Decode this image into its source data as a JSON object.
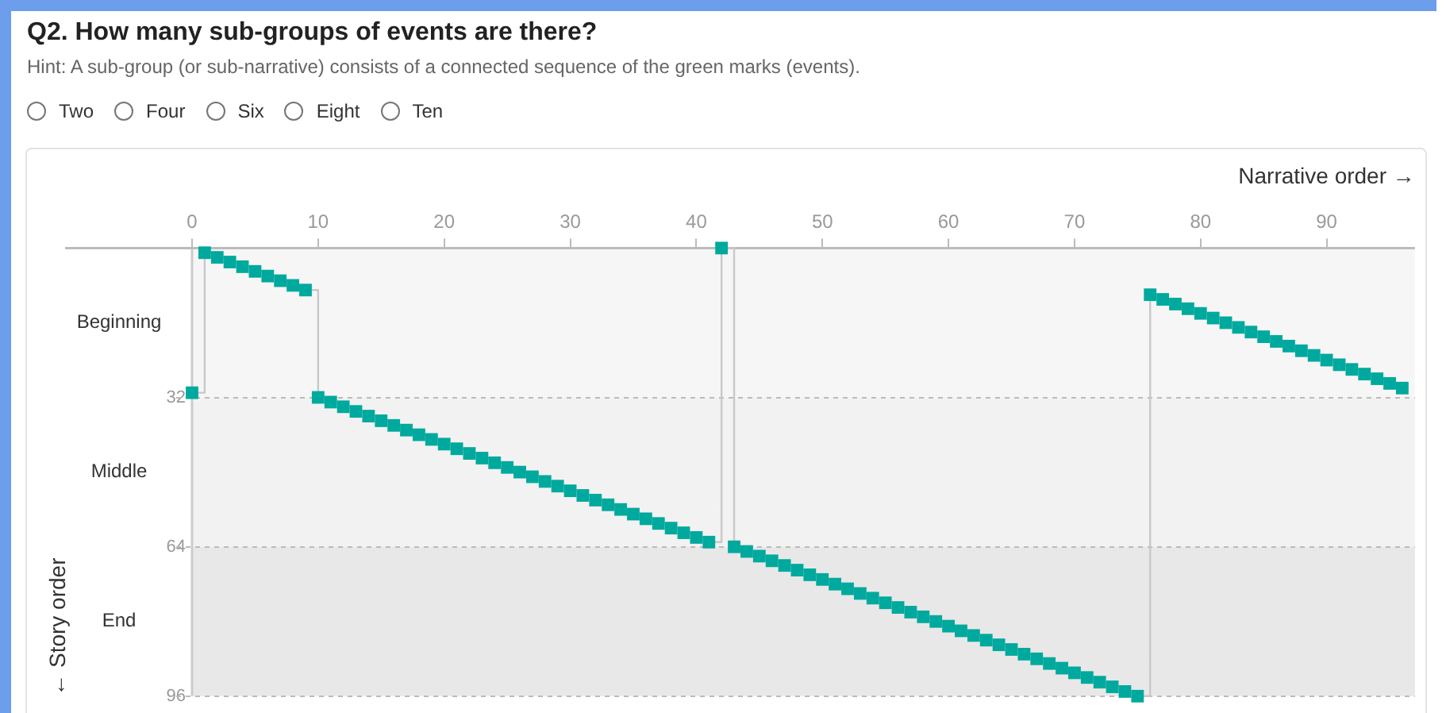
{
  "chart_data": {
    "type": "step",
    "title": "Q2. How many sub-groups of events are there?",
    "subtitle": "Hint: A sub-group (or sub-narrative) consists of a connected sequence of the green marks (events).",
    "annotations": [
      "Two",
      "Four",
      "Six",
      "Eight",
      "Ten"
    ],
    "xlabel": "Narrative order →",
    "ylabel": "← Story order",
    "x": [
      0,
      1,
      2,
      3,
      4,
      5,
      6,
      7,
      8,
      9,
      10,
      11,
      12,
      13,
      14,
      15,
      16,
      17,
      18,
      19,
      20,
      21,
      22,
      23,
      24,
      25,
      26,
      27,
      28,
      29,
      30,
      31,
      32,
      33,
      34,
      35,
      36,
      37,
      38,
      39,
      40,
      41,
      42,
      43,
      44,
      45,
      46,
      47,
      48,
      49,
      50,
      51,
      52,
      53,
      54,
      55,
      56,
      57,
      58,
      59,
      60,
      61,
      62,
      63,
      64,
      65,
      66,
      67,
      68,
      69,
      70,
      71,
      72,
      73,
      74,
      75,
      76,
      77,
      78,
      79,
      80,
      81,
      82,
      83,
      84,
      85,
      86,
      87,
      88,
      89,
      90,
      91,
      92,
      93,
      94,
      95,
      96
    ],
    "series": [
      {
        "color": "#00a99d",
        "values": [
          31,
          1,
          2,
          3,
          4,
          5,
          6,
          7,
          8,
          9,
          32,
          33,
          34,
          35,
          36,
          37,
          38,
          39,
          40,
          41,
          42,
          43,
          44,
          45,
          46,
          47,
          48,
          49,
          50,
          51,
          52,
          53,
          54,
          55,
          56,
          57,
          58,
          59,
          60,
          61,
          62,
          63,
          0,
          64,
          65,
          66,
          67,
          68,
          69,
          70,
          71,
          72,
          73,
          74,
          75,
          76,
          77,
          78,
          79,
          80,
          81,
          82,
          83,
          84,
          85,
          86,
          87,
          88,
          89,
          90,
          91,
          92,
          93,
          94,
          95,
          96,
          10,
          11,
          12,
          13,
          14,
          15,
          16,
          17,
          18,
          19,
          20,
          21,
          22,
          23,
          24,
          25,
          26,
          27,
          28,
          29,
          30
        ]
      }
    ],
    "xlim": [
      0,
      97
    ],
    "xticks": [
      0,
      10,
      20,
      30,
      40,
      50,
      60,
      70,
      80,
      90
    ],
    "ylim": [
      96,
      0
    ],
    "yticks": [
      32,
      64,
      96
    ],
    "bands": [
      {
        "axis": "y",
        "from": 0,
        "to": 32,
        "label": "Beginning",
        "color": "#f6f6f6"
      },
      {
        "axis": "y",
        "from": 32,
        "to": 64,
        "label": "Middle",
        "color": "#f2f2f2"
      },
      {
        "axis": "y",
        "from": 64,
        "to": 96,
        "label": "End",
        "color": "#e8e8e8"
      }
    ],
    "grid": "y",
    "marker": "square",
    "line_style": "solid",
    "legend": false
  }
}
